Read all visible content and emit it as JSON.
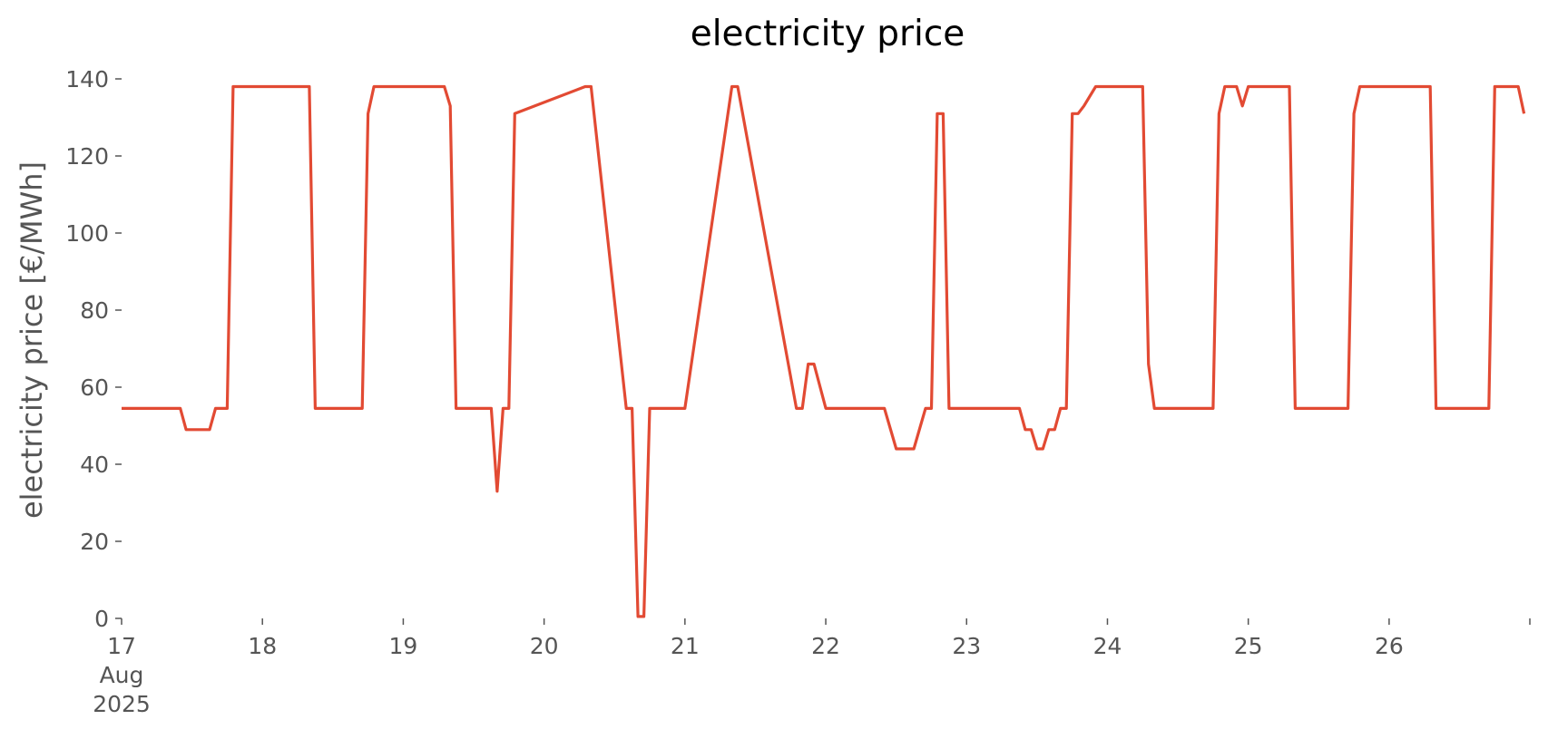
{
  "chart_data": {
    "type": "line",
    "title": "electricity price",
    "xlabel": "",
    "ylabel": "electricity price [€/MWh]",
    "ylim": [
      0,
      140
    ],
    "xlim": [
      "2025-08-17T00:00",
      "2025-08-26T23:59"
    ],
    "grid": false,
    "color": "#e24a33",
    "y_ticks": [
      0,
      20,
      40,
      60,
      80,
      100,
      120,
      140
    ],
    "y_tick_labels": [
      "0",
      "20",
      "40",
      "60",
      "80",
      "100",
      "120",
      "140"
    ],
    "x_ticks": [
      "2025-08-17T00:00",
      "2025-08-18T00:00",
      "2025-08-19T00:00",
      "2025-08-20T00:00",
      "2025-08-21T00:00",
      "2025-08-22T00:00",
      "2025-08-23T00:00",
      "2025-08-24T00:00",
      "2025-08-25T00:00",
      "2025-08-26T00:00"
    ],
    "x_tick_labels": [
      "17\nAug\n2025",
      "18",
      "19",
      "20",
      "21",
      "22",
      "23",
      "24",
      "25",
      "26"
    ],
    "x": [
      "2025-08-17T00:00",
      "2025-08-17T10:00",
      "2025-08-17T11:00",
      "2025-08-17T15:00",
      "2025-08-17T16:00",
      "2025-08-17T18:00",
      "2025-08-17T19:00",
      "2025-08-18T08:00",
      "2025-08-18T09:00",
      "2025-08-18T17:00",
      "2025-08-18T18:00",
      "2025-08-18T19:00",
      "2025-08-19T07:00",
      "2025-08-19T08:00",
      "2025-08-19T09:00",
      "2025-08-19T15:00",
      "2025-08-19T16:00",
      "2025-08-19T17:00",
      "2025-08-19T18:00",
      "2025-08-19T19:00",
      "2025-08-20T07:00",
      "2025-08-20T08:00",
      "2025-08-20T14:00",
      "2025-08-20T15:00",
      "2025-08-20T16:00",
      "2025-08-20T17:00",
      "2025-08-20T18:00",
      "2025-08-21T00:00",
      "2025-08-21T08:00",
      "2025-08-21T09:00",
      "2025-08-21T19:00",
      "2025-08-21T20:00",
      "2025-08-21T21:00",
      "2025-08-21T22:00",
      "2025-08-22T00:00",
      "2025-08-22T10:00",
      "2025-08-22T12:00",
      "2025-08-22T15:00",
      "2025-08-22T17:00",
      "2025-08-22T18:00",
      "2025-08-22T19:00",
      "2025-08-22T20:00",
      "2025-08-22T21:00",
      "2025-08-23T09:00",
      "2025-08-23T10:00",
      "2025-08-23T11:00",
      "2025-08-23T12:00",
      "2025-08-23T13:00",
      "2025-08-23T14:00",
      "2025-08-23T15:00",
      "2025-08-23T16:00",
      "2025-08-23T17:00",
      "2025-08-23T18:00",
      "2025-08-23T19:00",
      "2025-08-23T20:00",
      "2025-08-23T22:00",
      "2025-08-24T06:00",
      "2025-08-24T07:00",
      "2025-08-24T08:00",
      "2025-08-24T18:00",
      "2025-08-24T19:00",
      "2025-08-24T20:00",
      "2025-08-24T22:00",
      "2025-08-24T23:00",
      "2025-08-25T00:00",
      "2025-08-25T07:00",
      "2025-08-25T08:00",
      "2025-08-25T17:00",
      "2025-08-25T18:00",
      "2025-08-25T19:00",
      "2025-08-26T07:00",
      "2025-08-26T08:00",
      "2025-08-26T17:00",
      "2025-08-26T18:00",
      "2025-08-26T22:00",
      "2025-08-26T23:00"
    ],
    "y": [
      54.5,
      54.5,
      49,
      49,
      54.5,
      54.5,
      138,
      138,
      54.5,
      54.5,
      131,
      138,
      138,
      133,
      54.5,
      54.5,
      33,
      54.5,
      54.5,
      131,
      138,
      138,
      54.5,
      54.5,
      0.5,
      0.5,
      54.5,
      54.5,
      138,
      138,
      54.5,
      54.5,
      66,
      66,
      54.5,
      54.5,
      44,
      44,
      54.5,
      54.5,
      131,
      131,
      54.5,
      54.5,
      49,
      49,
      44,
      44,
      49,
      49,
      54.5,
      54.5,
      131,
      131,
      133,
      138,
      138,
      66,
      54.5,
      54.5,
      131,
      138,
      138,
      133,
      138,
      138,
      54.5,
      54.5,
      131,
      138,
      138,
      54.5,
      54.5,
      138,
      138,
      131
    ]
  }
}
